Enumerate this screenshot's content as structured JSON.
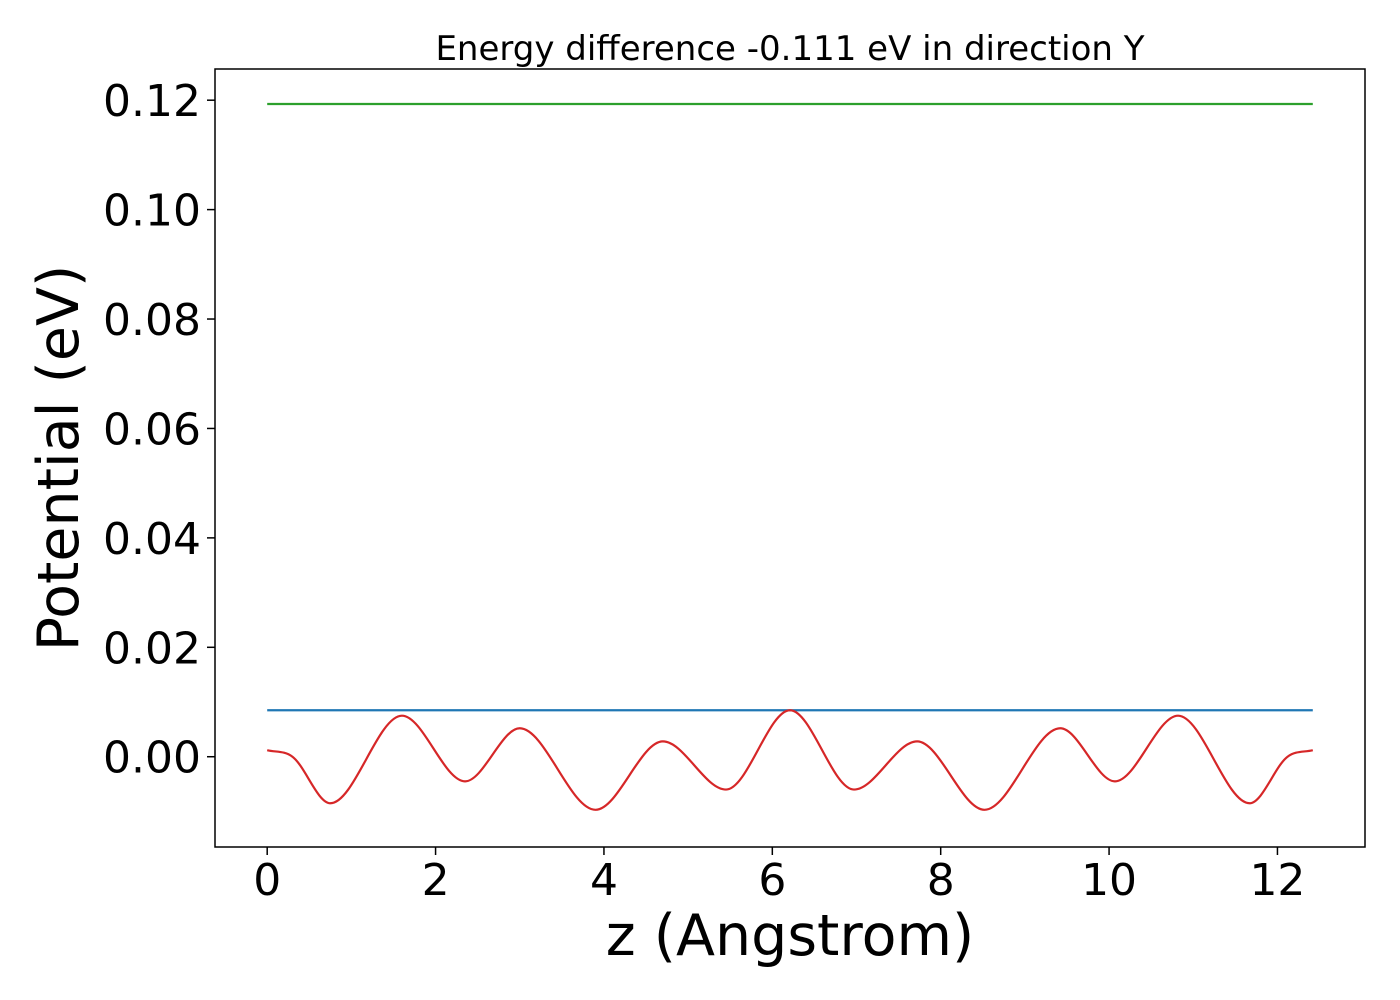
{
  "chart_data": {
    "type": "line",
    "title": "Energy difference -0.111 eV in direction Y",
    "xlabel": "z (Angstrom)",
    "ylabel": "Potential (eV)",
    "xlim": [
      -0.62,
      13.04
    ],
    "ylim": [
      -0.0165,
      0.1257
    ],
    "x_ticks": [
      0,
      2,
      4,
      6,
      8,
      10,
      12
    ],
    "x_tick_labels": [
      "0",
      "2",
      "4",
      "6",
      "8",
      "10",
      "12"
    ],
    "y_ticks": [
      0.0,
      0.02,
      0.04,
      0.06,
      0.08,
      0.1,
      0.12
    ],
    "y_tick_labels": [
      "0.00",
      "0.02",
      "0.04",
      "0.06",
      "0.08",
      "0.10",
      "0.12"
    ],
    "grid": false,
    "legend": "none",
    "series": [
      {
        "color": "#2ca02c",
        "style": "horizontal",
        "x": [
          0,
          12.42
        ],
        "y": [
          0.1193,
          0.1193
        ]
      },
      {
        "color": "#1f77b4",
        "style": "horizontal",
        "x": [
          0,
          12.42
        ],
        "y": [
          0.0085,
          0.0085
        ]
      },
      {
        "color": "#d62728",
        "style": "smooth",
        "x": [
          0,
          0.3,
          0.75,
          1.6,
          2.35,
          3.0,
          3.9,
          4.7,
          5.45,
          6.21,
          6.97,
          7.72,
          8.52,
          9.42,
          10.07,
          10.82,
          11.67,
          12.12,
          12.42
        ],
        "y": [
          0.0012,
          0.0,
          -0.0085,
          0.0075,
          -0.0045,
          0.0052,
          -0.0097,
          0.0028,
          -0.006,
          0.0085,
          -0.006,
          0.0028,
          -0.0097,
          0.0052,
          -0.0045,
          0.0075,
          -0.0085,
          0.0,
          0.0012
        ]
      }
    ]
  }
}
